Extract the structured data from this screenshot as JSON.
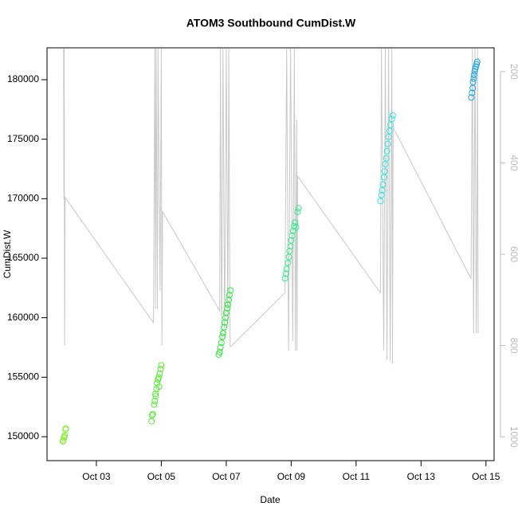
{
  "chart_data": {
    "type": "scatter",
    "title": "ATOM3 Southbound CumDist.W",
    "x_label": "Date",
    "y_label": "CumDist.W",
    "xlim": [
      1.48,
      15.25
    ],
    "xticks": [
      {
        "value": 3,
        "label": "Oct 03"
      },
      {
        "value": 5,
        "label": "Oct 05"
      },
      {
        "value": 7,
        "label": "Oct 07"
      },
      {
        "value": 9,
        "label": "Oct 09"
      },
      {
        "value": 11,
        "label": "Oct 11"
      },
      {
        "value": 13,
        "label": "Oct 13"
      },
      {
        "value": 15,
        "label": "Oct 15"
      }
    ],
    "ylim": [
      147990,
      182680
    ],
    "yticks": [
      150000,
      155000,
      160000,
      165000,
      170000,
      175000,
      180000
    ],
    "y2lim": [
      1052,
      148
    ],
    "y2ticks": [
      200,
      400,
      600,
      800,
      1000
    ],
    "series": [
      {
        "type": "line",
        "axis": "y2",
        "color": "#c8c8c8",
        "x": [
          1.99,
          2.0,
          2.01,
          2.02,
          2.04,
          4.76,
          4.8,
          4.82,
          4.84,
          4.88,
          4.9,
          4.96,
          5.0,
          5.02,
          5.04,
          6.8,
          6.82,
          6.86,
          6.9,
          6.95,
          7.0,
          7.05,
          7.08,
          7.12,
          7.14,
          8.81,
          8.86,
          8.92,
          8.98,
          9.05,
          9.1,
          9.13,
          9.17,
          9.18,
          9.2,
          11.75,
          11.78,
          11.85,
          11.9,
          11.95,
          12.0,
          12.05,
          12.1,
          12.12,
          12.14,
          14.54,
          14.58,
          14.62,
          14.66,
          14.7,
          14.72,
          14.74,
          14.76
        ],
        "values": [
          150,
          480,
          150,
          800,
          476,
          750,
          150,
          720,
          150,
          720,
          150,
          680,
          150,
          800,
          507,
          724,
          150,
          800,
          150,
          780,
          150,
          760,
          150,
          802,
          802,
          685,
          150,
          811,
          150,
          790,
          150,
          811,
          305,
          811,
          429,
          685,
          150,
          811,
          150,
          830,
          150,
          835,
          150,
          840,
          322,
          654,
          150,
          773,
          150,
          773,
          590,
          150,
          773
        ]
      },
      {
        "type": "scatter",
        "color": "#86ee3a",
        "x": [
          1.97,
          1.98,
          2.0,
          2.01,
          2.03,
          2.05,
          2.06
        ],
        "values": [
          149600,
          149700,
          149900,
          150000,
          150100,
          150600,
          150700
        ]
      },
      {
        "type": "scatter",
        "color": "#55ee33",
        "x": [
          4.7,
          4.72,
          4.74,
          4.78,
          4.8,
          4.82,
          4.83,
          4.85,
          4.87,
          4.9,
          4.92,
          4.93,
          4.95,
          4.98,
          5.0
        ],
        "values": [
          151300,
          151800,
          151900,
          152700,
          153000,
          153600,
          153400,
          154000,
          154500,
          154800,
          155000,
          154200,
          155300,
          155700,
          156000
        ]
      },
      {
        "type": "scatter",
        "color": "#2aee3c",
        "x": [
          6.77,
          6.8,
          6.82,
          6.85,
          6.88,
          6.9,
          6.93,
          6.96,
          6.98,
          7.0,
          7.03,
          7.05,
          7.08,
          7.1,
          7.13
        ],
        "values": [
          156900,
          157100,
          157500,
          157900,
          158400,
          158700,
          159200,
          159600,
          160000,
          160400,
          160800,
          161100,
          161500,
          161900,
          162300
        ]
      },
      {
        "type": "scatter",
        "color": "#33ee88",
        "x": [
          8.81,
          8.84,
          8.86,
          8.9,
          8.93,
          8.95,
          8.98,
          9.0,
          9.03,
          9.06,
          9.09,
          9.12,
          9.15,
          9.2,
          9.23
        ],
        "values": [
          163300,
          163700,
          164100,
          164600,
          165100,
          165600,
          166000,
          166500,
          166900,
          167300,
          167700,
          168000,
          167600,
          168900,
          169200
        ]
      },
      {
        "type": "scatter",
        "color": "#33e4e0",
        "x": [
          11.75,
          11.78,
          11.8,
          11.83,
          11.86,
          11.88,
          11.9,
          11.93,
          11.95,
          11.98,
          12.0,
          12.03,
          12.06,
          12.1,
          12.13
        ],
        "values": [
          169800,
          170300,
          170700,
          171200,
          171800,
          172300,
          172900,
          173400,
          174000,
          174600,
          175200,
          175700,
          176200,
          176700,
          177000
        ]
      },
      {
        "type": "scatter",
        "color": "#1fa4e8",
        "x": [
          14.55,
          14.57,
          14.59,
          14.6,
          14.62,
          14.63,
          14.65,
          14.67,
          14.69,
          14.71,
          14.73
        ],
        "values": [
          178500,
          178900,
          179300,
          179800,
          180100,
          180400,
          180700,
          180900,
          181100,
          181300,
          181500
        ]
      }
    ]
  }
}
